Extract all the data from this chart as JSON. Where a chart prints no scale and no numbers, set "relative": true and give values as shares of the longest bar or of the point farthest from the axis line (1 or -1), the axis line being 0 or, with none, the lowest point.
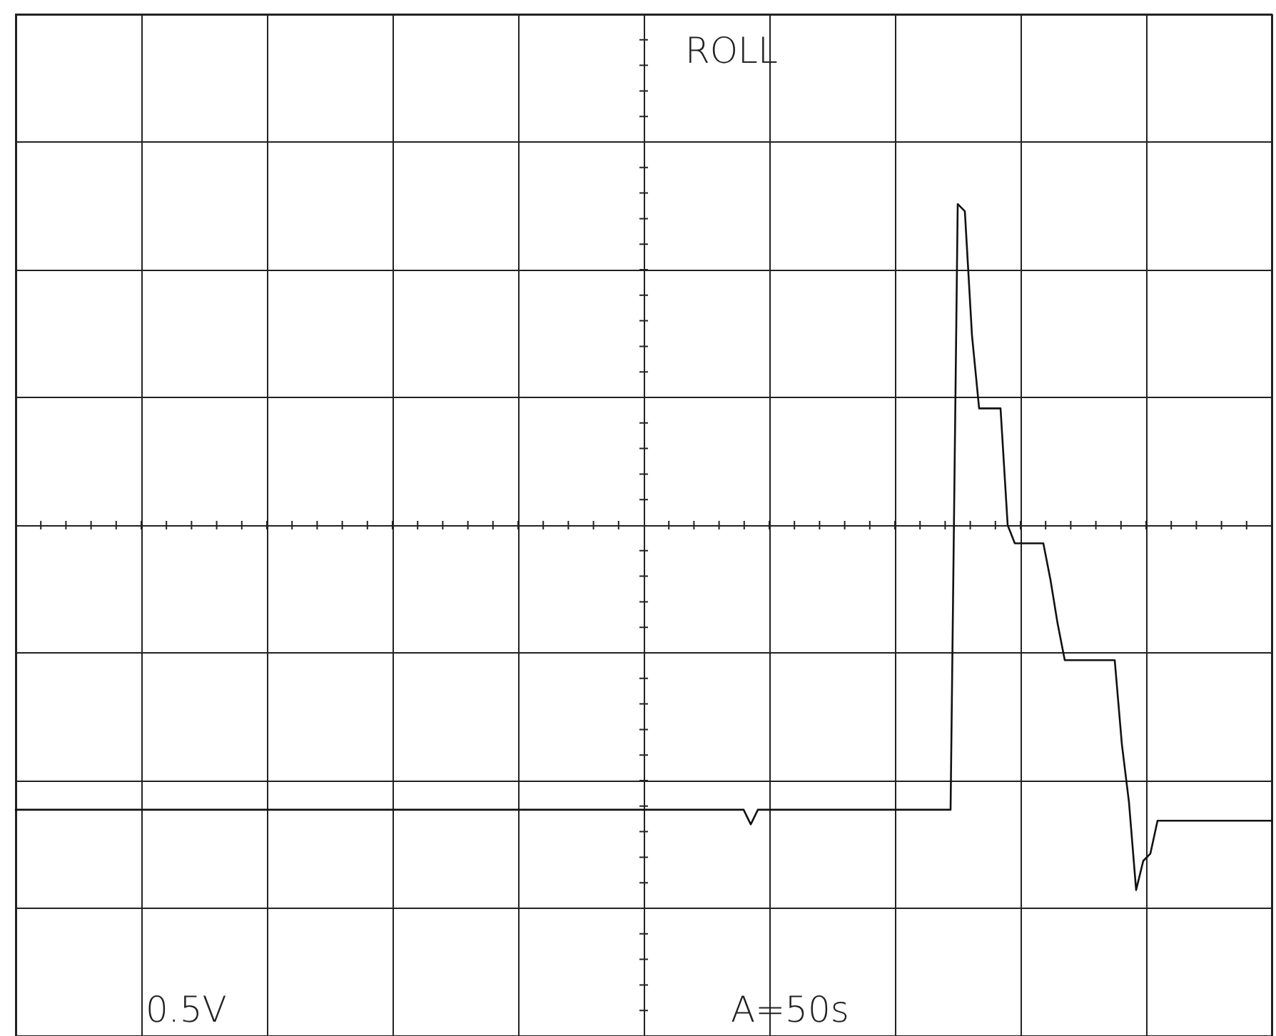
{
  "chart_data": {
    "type": "line",
    "title": "ROLL",
    "annotations": [
      "0.5V",
      "A=50s"
    ],
    "relative": true,
    "grid": true,
    "marker": "none",
    "line_style": "solid",
    "categories": [
      null,
      null,
      null,
      null,
      null,
      null,
      null,
      null,
      null,
      null,
      null,
      null,
      null,
      null,
      null,
      null,
      null,
      null,
      null,
      null,
      null,
      null,
      null,
      null,
      null,
      null,
      null,
      null,
      null,
      null,
      null,
      null,
      null,
      null,
      null,
      null,
      null,
      null,
      null,
      null,
      null,
      null,
      null,
      null,
      null,
      null,
      null,
      null,
      null,
      null,
      null,
      null,
      null,
      null,
      null,
      null,
      null,
      null,
      null,
      null,
      null,
      null,
      null,
      null,
      null,
      null,
      null,
      null,
      null,
      null,
      null,
      null,
      null,
      null,
      null,
      null,
      null,
      null,
      null,
      null,
      null,
      null,
      null,
      null,
      null,
      null,
      null,
      null,
      null,
      null,
      null,
      null,
      null,
      null,
      null,
      null,
      null,
      null,
      null,
      null,
      null,
      null,
      null,
      null,
      null,
      null,
      null,
      null,
      null,
      null,
      null,
      null,
      null,
      null,
      null,
      null,
      null,
      null,
      null,
      null,
      null,
      null,
      null,
      null,
      null,
      null,
      null,
      null,
      null,
      null,
      null,
      null,
      null,
      null,
      null,
      null,
      null,
      null,
      null,
      null,
      null,
      null,
      null,
      null,
      null,
      null,
      null,
      null,
      null,
      null,
      null,
      null,
      null,
      null,
      null,
      null,
      null,
      null,
      null,
      null,
      null,
      null,
      null,
      null,
      null,
      null,
      null,
      null,
      null,
      null,
      null,
      null,
      null,
      null,
      null,
      null,
      null
    ],
    "series": [
      {
        "color": "#111111",
        "values": [
          -0.78,
          -0.78,
          -0.78,
          -0.78,
          -0.78,
          -0.78,
          -0.78,
          -0.78,
          -0.78,
          -0.78,
          -0.78,
          -0.78,
          -0.78,
          -0.78,
          -0.78,
          -0.78,
          -0.78,
          -0.78,
          -0.78,
          -0.78,
          -0.78,
          -0.78,
          -0.78,
          -0.78,
          -0.78,
          -0.78,
          -0.78,
          -0.78,
          -0.78,
          -0.78,
          -0.78,
          -0.78,
          -0.78,
          -0.78,
          -0.78,
          -0.78,
          -0.78,
          -0.78,
          -0.78,
          -0.78,
          -0.78,
          -0.78,
          -0.78,
          -0.78,
          -0.78,
          -0.78,
          -0.78,
          -0.78,
          -0.78,
          -0.78,
          -0.78,
          -0.78,
          -0.78,
          -0.78,
          -0.78,
          -0.78,
          -0.78,
          -0.78,
          -0.78,
          -0.78,
          -0.78,
          -0.78,
          -0.78,
          -0.78,
          -0.78,
          -0.78,
          -0.78,
          -0.78,
          -0.78,
          -0.78,
          -0.78,
          -0.78,
          -0.78,
          -0.78,
          -0.78,
          -0.78,
          -0.78,
          -0.78,
          -0.78,
          -0.78,
          -0.78,
          -0.78,
          -0.78,
          -0.78,
          -0.78,
          -0.78,
          -0.78,
          -0.78,
          -0.78,
          -0.78,
          -0.78,
          -0.78,
          -0.78,
          -0.78,
          -0.78,
          -0.78,
          -0.78,
          -0.78,
          -0.78,
          -0.78,
          -0.78,
          -0.78,
          -0.78,
          -0.82,
          -0.78,
          -0.78,
          -0.78,
          -0.78,
          -0.78,
          -0.78,
          -0.78,
          -0.78,
          -0.78,
          -0.78,
          -0.78,
          -0.78,
          -0.78,
          -0.78,
          -0.78,
          -0.78,
          -0.78,
          -0.78,
          -0.78,
          -0.78,
          -0.78,
          -0.78,
          -0.78,
          -0.78,
          -0.78,
          -0.78,
          -0.78,
          -0.78,
          0.88,
          0.86,
          0.52,
          0.32,
          0.32,
          0.32,
          0.32,
          0.0,
          -0.05,
          -0.05,
          -0.05,
          -0.05,
          -0.05,
          -0.15,
          -0.27,
          -0.37,
          -0.37,
          -0.37,
          -0.37,
          -0.37,
          -0.37,
          -0.37,
          -0.37,
          -0.6,
          -0.76,
          -1,
          -0.92,
          -0.9,
          -0.81,
          -0.81,
          -0.81,
          -0.81,
          -0.81,
          -0.81,
          -0.81,
          -0.81,
          -0.81,
          -0.81,
          -0.81,
          -0.81,
          -0.81,
          -0.81,
          -0.81,
          -0.81,
          -0.81
        ]
      }
    ]
  }
}
